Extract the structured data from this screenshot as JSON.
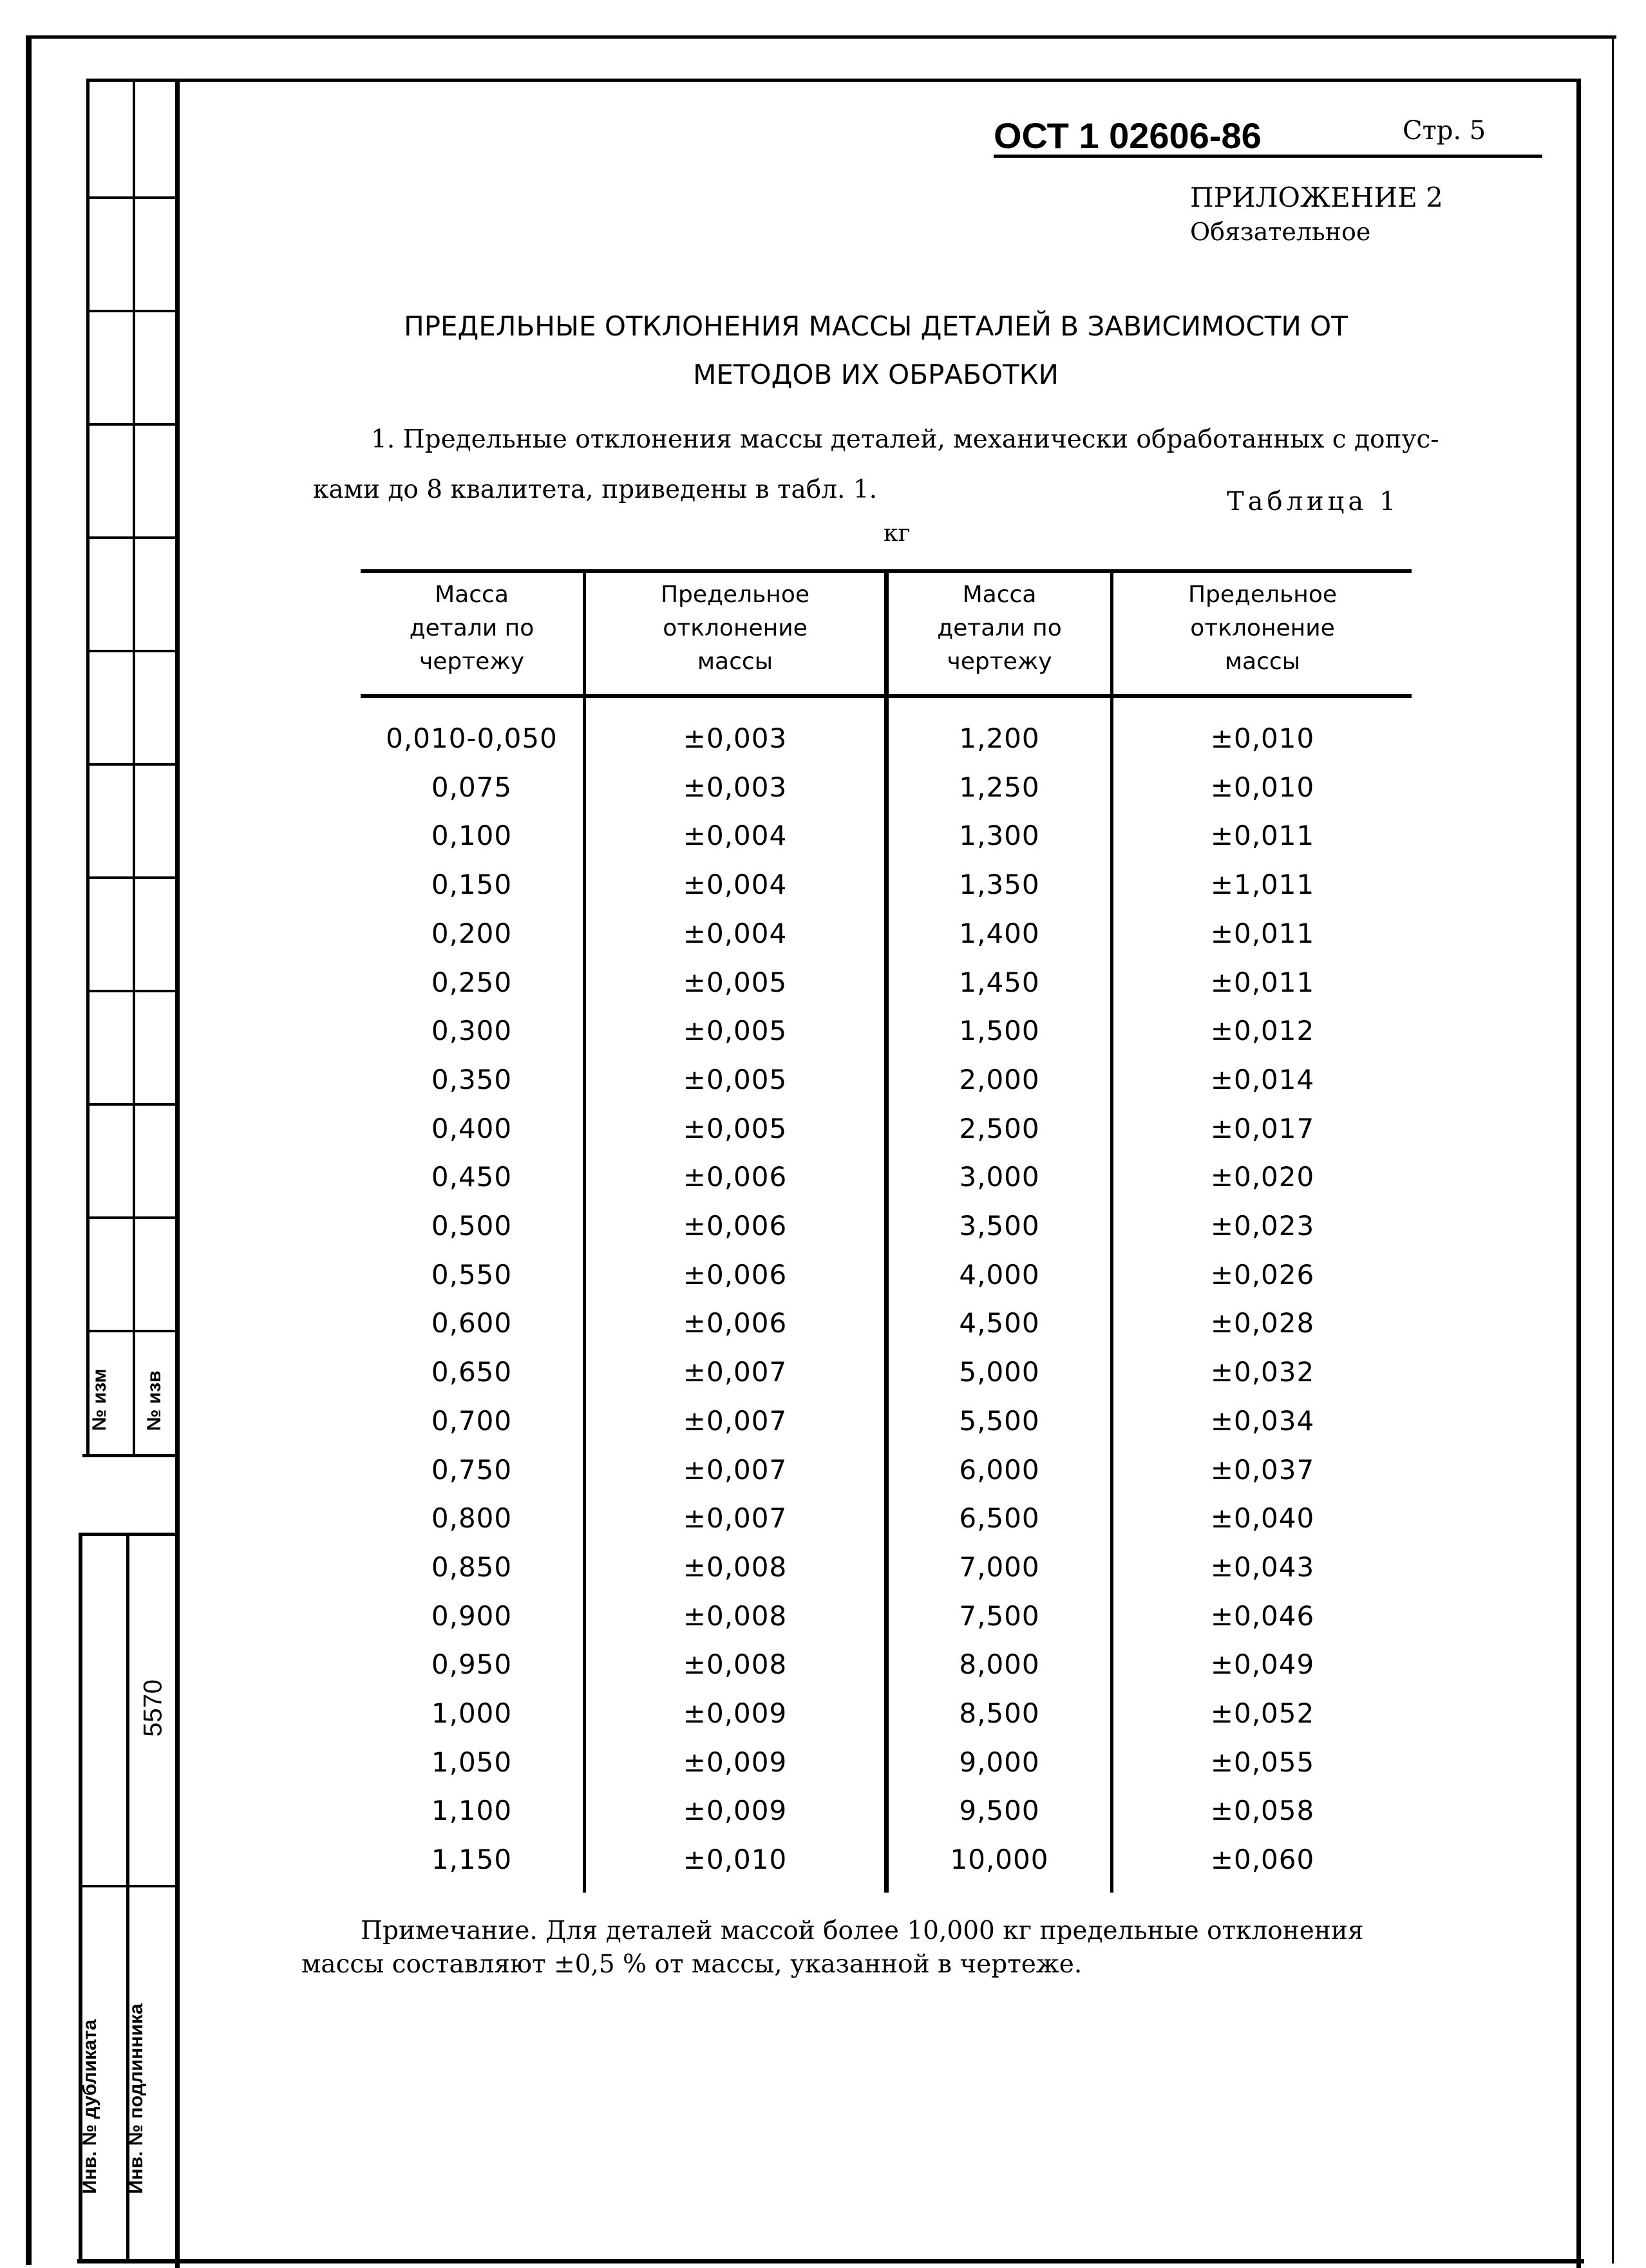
{
  "header": {
    "doc_number": "ОСТ 1 02606-86",
    "page": "Стр. 5",
    "appendix": "ПРИЛОЖЕНИЕ 2",
    "appendix_status": "Обязательное"
  },
  "title": {
    "line1": "ПРЕДЕЛЬНЫЕ ОТКЛОНЕНИЯ МАССЫ ДЕТАЛЕЙ В ЗАВИСИМОСТИ ОТ",
    "line2": "МЕТОДОВ ИХ ОБРАБОТКИ"
  },
  "paragraph": {
    "line1": "1. Предельные отклонения массы деталей, механически обработанных с допус-",
    "line2": "ками до 8 квалитета, приведены в табл. 1."
  },
  "table": {
    "label": "Таблица 1",
    "unit": "кг",
    "headers": [
      "Масса\nдетали по\nчертежу",
      "Предельное\nотклонение\nмассы",
      "Масса\nдетали по\nчертежу",
      "Предельное\nотклонение\nмассы"
    ],
    "left_mass": [
      "0,010-0,050",
      "0,075",
      "0,100",
      "0,150",
      "0,200",
      "0,250",
      "0,300",
      "0,350",
      "0,400",
      "0,450",
      "0,500",
      "0,550",
      "0,600",
      "0,650",
      "0,700",
      "0,750",
      "0,800",
      "0,850",
      "0,900",
      "0,950",
      "1,000",
      "1,050",
      "1,100",
      "1,150"
    ],
    "left_dev": [
      "±0,003",
      "±0,003",
      "±0,004",
      "±0,004",
      "±0,004",
      "±0,005",
      "±0,005",
      "±0,005",
      "±0,005",
      "±0,006",
      "±0,006",
      "±0,006",
      "±0,006",
      "±0,007",
      "±0,007",
      "±0,007",
      "±0,007",
      "±0,008",
      "±0,008",
      "±0,008",
      "±0,009",
      "±0,009",
      "±0,009",
      "±0,010"
    ],
    "right_mass": [
      "1,200",
      "1,250",
      "1,300",
      "1,350",
      "1,400",
      "1,450",
      "1,500",
      "2,000",
      "2,500",
      "3,000",
      "3,500",
      "4,000",
      "4,500",
      "5,000",
      "5,500",
      "6,000",
      "6,500",
      "7,000",
      "7,500",
      "8,000",
      "8,500",
      "9,000",
      "9,500",
      "10,000"
    ],
    "right_dev": [
      "±0,010",
      "±0,010",
      "±0,011",
      "±1,011",
      "±0,011",
      "±0,011",
      "±0,012",
      "±0,014",
      "±0,017",
      "±0,020",
      "±0,023",
      "±0,026",
      "±0,028",
      "±0,032",
      "±0,034",
      "±0,037",
      "±0,040",
      "±0,043",
      "±0,046",
      "±0,049",
      "±0,052",
      "±0,055",
      "±0,058",
      "±0,060"
    ]
  },
  "note": {
    "line1": "Примечание. Для деталей массой более 10,000 кг предельные отклонения",
    "line2": "массы составляют ±0,5 % от массы, указанной в чертеже."
  },
  "margin_strip": {
    "change_no": "№ изм",
    "notice_no": "№ изв",
    "dup_inv": "Инв. № дубликата",
    "orig_inv": "Инв. № подлинника",
    "orig_inv_value": "5570"
  }
}
